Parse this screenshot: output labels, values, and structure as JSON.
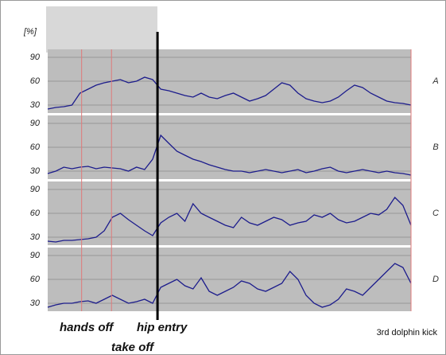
{
  "unit": "[%]",
  "events": [
    {
      "label": "hands off",
      "x": 4.2,
      "style": "thin"
    },
    {
      "label": "take off",
      "x": 7.9,
      "style": "thin"
    },
    {
      "label": "hip entry",
      "x": 13.6,
      "style": "thick"
    },
    {
      "label": "3rd dolphin kick",
      "x": 45,
      "style": "thin"
    }
  ],
  "chart_data": [
    {
      "type": "line",
      "label": "A",
      "color": "#1c1c8c",
      "ylim": [
        20,
        100
      ],
      "yticks": [
        30,
        60,
        90
      ],
      "xlim": [
        0,
        45
      ],
      "values": [
        25,
        27,
        28,
        30,
        45,
        50,
        55,
        58,
        60,
        62,
        58,
        60,
        65,
        62,
        50,
        48,
        45,
        42,
        40,
        45,
        40,
        38,
        42,
        45,
        40,
        35,
        38,
        42,
        50,
        58,
        55,
        45,
        38,
        35,
        33,
        35,
        40,
        48,
        55,
        52,
        45,
        40,
        35,
        33,
        32,
        30
      ]
    },
    {
      "type": "line",
      "label": "B",
      "color": "#1c1c8c",
      "ylim": [
        20,
        100
      ],
      "yticks": [
        30,
        60,
        90
      ],
      "xlim": [
        0,
        45
      ],
      "values": [
        27,
        30,
        35,
        33,
        35,
        36,
        33,
        35,
        34,
        33,
        30,
        35,
        32,
        45,
        75,
        65,
        55,
        50,
        45,
        42,
        38,
        35,
        32,
        30,
        30,
        28,
        30,
        32,
        30,
        28,
        30,
        32,
        28,
        30,
        33,
        35,
        30,
        28,
        30,
        32,
        30,
        28,
        30,
        28,
        27,
        25
      ]
    },
    {
      "type": "line",
      "label": "C",
      "color": "#1c1c8c",
      "ylim": [
        20,
        100
      ],
      "yticks": [
        30,
        60,
        90
      ],
      "xlim": [
        0,
        45
      ],
      "values": [
        25,
        24,
        26,
        26,
        27,
        28,
        30,
        38,
        55,
        60,
        52,
        45,
        38,
        32,
        48,
        55,
        60,
        50,
        72,
        60,
        55,
        50,
        45,
        42,
        55,
        48,
        45,
        50,
        55,
        52,
        45,
        48,
        50,
        58,
        55,
        60,
        52,
        48,
        50,
        55,
        60,
        58,
        65,
        80,
        70,
        45
      ]
    },
    {
      "type": "line",
      "label": "D",
      "color": "#1c1c8c",
      "ylim": [
        20,
        100
      ],
      "yticks": [
        30,
        60,
        90
      ],
      "xlim": [
        0,
        45
      ],
      "values": [
        25,
        28,
        30,
        30,
        32,
        33,
        30,
        35,
        40,
        35,
        30,
        32,
        35,
        30,
        50,
        55,
        60,
        52,
        48,
        62,
        45,
        40,
        45,
        50,
        58,
        55,
        48,
        45,
        50,
        55,
        70,
        60,
        40,
        30,
        25,
        28,
        35,
        48,
        45,
        40,
        50,
        60,
        70,
        80,
        75,
        55
      ]
    }
  ]
}
